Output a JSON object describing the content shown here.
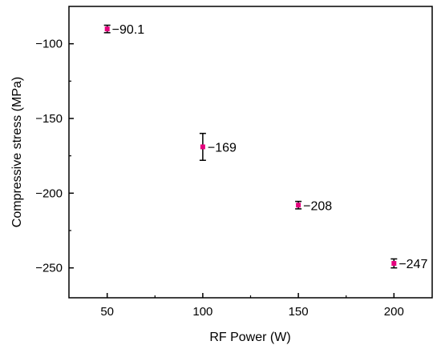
{
  "chart_data": {
    "type": "scatter",
    "xlabel": "RF Power (W)",
    "ylabel": "Compressive stress (MPa)",
    "xlim": [
      30,
      220
    ],
    "ylim": [
      -270,
      -75
    ],
    "x_ticks": [
      50,
      100,
      150,
      200
    ],
    "x_tick_labels": [
      "50",
      "100",
      "150",
      "200"
    ],
    "y_ticks": [
      -100,
      -150,
      -200,
      -250
    ],
    "y_tick_labels": [
      "−100",
      "−150",
      "−200",
      "−250"
    ],
    "grid": false,
    "marker_color": "#e6007e",
    "points": [
      {
        "x": 50,
        "y": -90.1,
        "err": 2.5,
        "label": "−90.1"
      },
      {
        "x": 100,
        "y": -169,
        "err": 9,
        "label": "−169"
      },
      {
        "x": 150,
        "y": -208,
        "err": 2.5,
        "label": "−208"
      },
      {
        "x": 200,
        "y": -247,
        "err": 3,
        "label": "−247"
      }
    ]
  }
}
